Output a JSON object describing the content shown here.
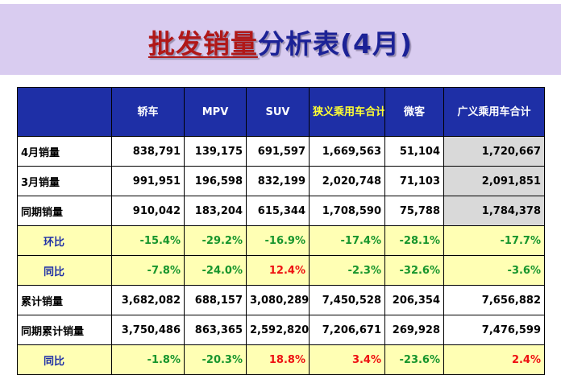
{
  "title": {
    "highlight": "批发销量",
    "rest": "分析表(4月)"
  },
  "colors": {
    "header_bg": "#1e2fa6",
    "pct_row_bg": "#ffffb4",
    "positive": "#ee1111",
    "negative": "#17952c",
    "total_col_bg": "#d9d9d9",
    "title_band": "#d9ccf0"
  },
  "table": {
    "headers": [
      "",
      "轿车",
      "MPV",
      "SUV",
      "狭义乘用车合计",
      "微客",
      "广义乘用车合计"
    ],
    "rows": [
      {
        "label": "4月销量",
        "cells": [
          "838,791",
          "139,175",
          "691,597",
          "1,669,563",
          "51,104",
          "1,720,667"
        ]
      },
      {
        "label": "3月销量",
        "cells": [
          "991,951",
          "196,598",
          "832,199",
          "2,020,748",
          "71,103",
          "2,091,851"
        ]
      },
      {
        "label": "同期销量",
        "cells": [
          "910,042",
          "183,204",
          "615,344",
          "1,708,590",
          "75,788",
          "1,784,378"
        ]
      },
      {
        "label": "环比",
        "cells": [
          "-15.4%",
          "-29.2%",
          "-16.9%",
          "-17.4%",
          "-28.1%",
          "-17.7%"
        ]
      },
      {
        "label": "同比",
        "cells": [
          "-7.8%",
          "-24.0%",
          "12.4%",
          "-2.3%",
          "-32.6%",
          "-3.6%"
        ]
      },
      {
        "label": "累计销量",
        "cells": [
          "3,682,082",
          "688,157",
          "3,080,289",
          "7,450,528",
          "206,354",
          "7,656,882"
        ]
      },
      {
        "label": "同期累计销量",
        "cells": [
          "3,750,486",
          "863,365",
          "2,592,820",
          "7,206,671",
          "269,928",
          "7,476,599"
        ]
      },
      {
        "label": "同比",
        "cells": [
          "-1.8%",
          "-20.3%",
          "18.8%",
          "3.4%",
          "-23.6%",
          "2.4%"
        ]
      }
    ]
  }
}
